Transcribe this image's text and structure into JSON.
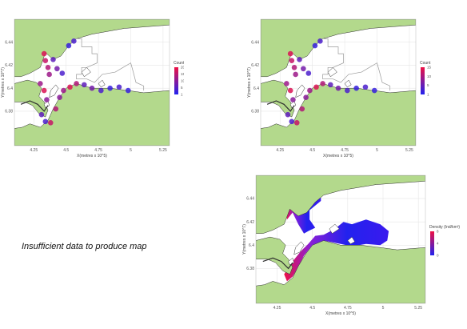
{
  "message": "Insufficient data to produce map",
  "colors": {
    "land": "#b3d98c",
    "water": "#ffffff",
    "grid": "#e6e6e6",
    "coast": "#2f2f2f",
    "boundary": "#9a9a9a",
    "low": "#2222ee",
    "high": "#ee1144"
  },
  "maps": [
    {
      "kind": "points",
      "ylabel": "Y(metres x 10^7)",
      "xlabel": "X(metres x 10^5)",
      "yticks": [
        "6.44",
        "6.42",
        "6.4",
        "6.38"
      ],
      "xticks": [
        "4.25",
        "4.5",
        "4.75",
        "5",
        "5.25"
      ],
      "legend_title": "Count",
      "legend_ticks": [
        "20",
        "15",
        "10",
        "5",
        "1"
      ]
    },
    {
      "kind": "points",
      "ylabel": "Y(metres x 10^7)",
      "xlabel": "X(metres x 10^5)",
      "yticks": [
        "6.44",
        "6.42",
        "6.4",
        "6.38"
      ],
      "xticks": [
        "4.25",
        "4.5",
        "4.75",
        "5",
        "5.25"
      ],
      "legend_title": "Count",
      "legend_ticks": [
        "15",
        "10",
        "5",
        "1"
      ]
    },
    {
      "kind": "surface",
      "ylabel": "Y(metres x 10^7)",
      "xlabel": "X(metres x 10^5)",
      "yticks": [
        "6.44",
        "6.42",
        "6.4",
        "6.38"
      ],
      "xticks": [
        "4.25",
        "4.5",
        "4.75",
        "5",
        "5.25"
      ],
      "legend_title": "Density (Ind/km²)",
      "legend_ticks": [
        "8",
        "4",
        "0"
      ]
    }
  ],
  "points": [
    {
      "x": 4.33,
      "y": 6.43,
      "v": 0.9
    },
    {
      "x": 4.34,
      "y": 6.424,
      "v": 0.8
    },
    {
      "x": 4.36,
      "y": 6.418,
      "v": 0.7
    },
    {
      "x": 4.37,
      "y": 6.412,
      "v": 0.6
    },
    {
      "x": 4.4,
      "y": 6.425,
      "v": 0.3
    },
    {
      "x": 4.43,
      "y": 6.417,
      "v": 0.4
    },
    {
      "x": 4.47,
      "y": 6.413,
      "v": 0.2
    },
    {
      "x": 4.52,
      "y": 6.437,
      "v": 0.1
    },
    {
      "x": 4.56,
      "y": 6.441,
      "v": 0.2
    },
    {
      "x": 4.38,
      "y": 6.37,
      "v": 0.8
    },
    {
      "x": 4.42,
      "y": 6.382,
      "v": 0.7
    },
    {
      "x": 4.45,
      "y": 6.392,
      "v": 0.5
    },
    {
      "x": 4.48,
      "y": 6.398,
      "v": 0.6
    },
    {
      "x": 4.53,
      "y": 6.401,
      "v": 0.9
    },
    {
      "x": 4.58,
      "y": 6.404,
      "v": 0.7
    },
    {
      "x": 4.64,
      "y": 6.403,
      "v": 0.3
    },
    {
      "x": 4.7,
      "y": 6.4,
      "v": 0.4
    },
    {
      "x": 4.77,
      "y": 6.398,
      "v": 0.2
    },
    {
      "x": 4.84,
      "y": 6.4,
      "v": 0.1
    },
    {
      "x": 4.91,
      "y": 6.401,
      "v": 0.2
    },
    {
      "x": 4.98,
      "y": 6.398,
      "v": 0.1
    },
    {
      "x": 4.3,
      "y": 6.404,
      "v": 0.6
    },
    {
      "x": 4.33,
      "y": 6.398,
      "v": 0.9
    },
    {
      "x": 4.35,
      "y": 6.39,
      "v": 0.5
    },
    {
      "x": 4.31,
      "y": 6.377,
      "v": 0.3
    },
    {
      "x": 4.34,
      "y": 6.371,
      "v": 0.2
    }
  ]
}
